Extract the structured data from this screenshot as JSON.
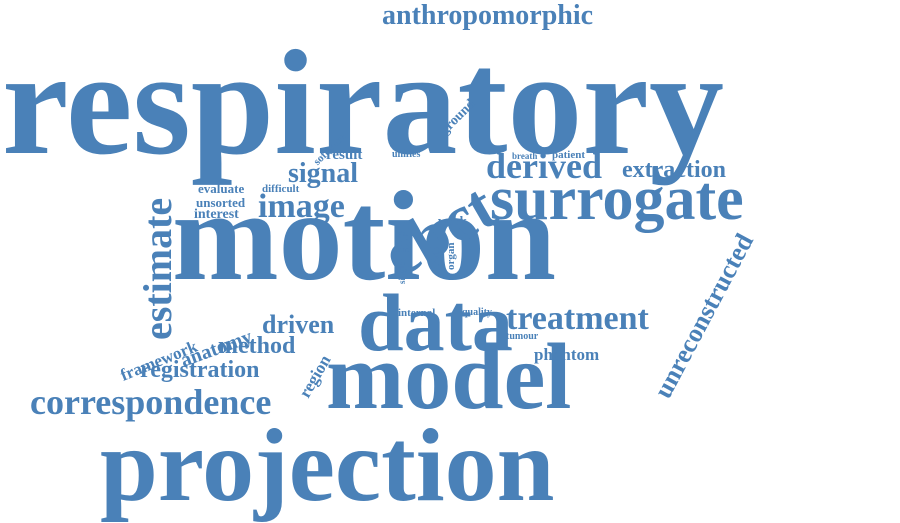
{
  "accent_color": "#4a81b8",
  "words": {
    "respiratory": "respiratory",
    "motion": "motion",
    "model": "model",
    "projection": "projection",
    "data": "data",
    "surrogate": "surrogate",
    "cbct": "cbct",
    "estimate": "estimate",
    "correspondence": "correspondence",
    "treatment": "treatment",
    "unreconstructed": "unreconstructed",
    "anthropomorphic": "anthropomorphic",
    "derived": "derived",
    "extraction": "extraction",
    "image": "image",
    "signal": "signal",
    "registration": "registration",
    "driven": "driven",
    "method": "method",
    "anatomy": "anatomy",
    "framework": "framework",
    "region": "region",
    "phantom": "phantom",
    "evaluate": "evaluate",
    "unsorted": "unsorted",
    "interest": "interest",
    "difficult": "difficult",
    "result": "result",
    "unifies": "unifies",
    "software": "software",
    "ground": "ground",
    "breath": "breath",
    "patient": "patient",
    "work": "work",
    "goal": "goal",
    "time": "time",
    "truth": "truth",
    "organ": "organ",
    "single": "single",
    "internal": "internal",
    "quality": "quality",
    "tumour": "tumour"
  }
}
